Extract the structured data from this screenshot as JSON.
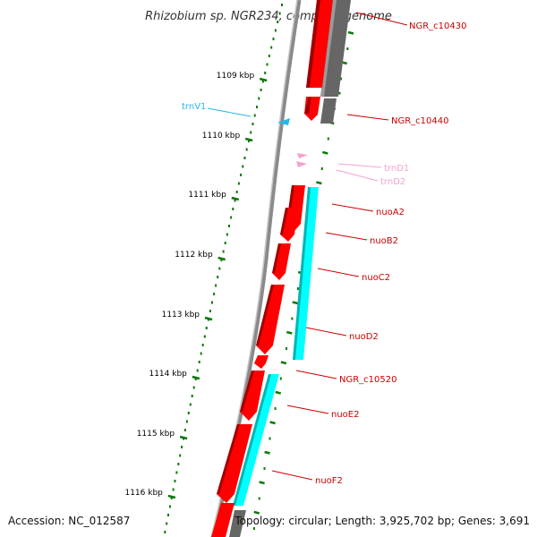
{
  "title": "Rhizobium sp. NGR234, complete genome",
  "footer": {
    "accession": "Accession: NC_012587",
    "topology": "Topology: circular; Length: 3,925,702 bp; Genes: 3,691"
  },
  "colors": {
    "cds_red": "#ff0000",
    "cds_dark_red": "#a00000",
    "cyan": "#00ffff",
    "gray_block": "#666666",
    "trna_blue": "#29b6e8",
    "trna_pink": "#f5a2d0",
    "label_red": "#cc0000",
    "tick_green": "#0a7a0a",
    "backbone": "#8a8a8a"
  },
  "kbp_labels": [
    "1109 kbp",
    "1110 kbp",
    "1111 kbp",
    "1112 kbp",
    "1113 kbp",
    "1114 kbp",
    "1115 kbp",
    "1116 kbp"
  ],
  "gene_labels": [
    {
      "text": "NGR_c10430",
      "kind": "red"
    },
    {
      "text": "NGR_c10440",
      "kind": "red"
    },
    {
      "text": "trnV1",
      "kind": "blue"
    },
    {
      "text": "trnD1",
      "kind": "pink"
    },
    {
      "text": "trnD2",
      "kind": "pink"
    },
    {
      "text": "nuoA2",
      "kind": "red"
    },
    {
      "text": "nuoB2",
      "kind": "red"
    },
    {
      "text": "nuoC2",
      "kind": "red"
    },
    {
      "text": "nuoD2",
      "kind": "red"
    },
    {
      "text": "NGR_c10520",
      "kind": "red"
    },
    {
      "text": "nuoE2",
      "kind": "red"
    },
    {
      "text": "nuoF2",
      "kind": "red"
    }
  ]
}
